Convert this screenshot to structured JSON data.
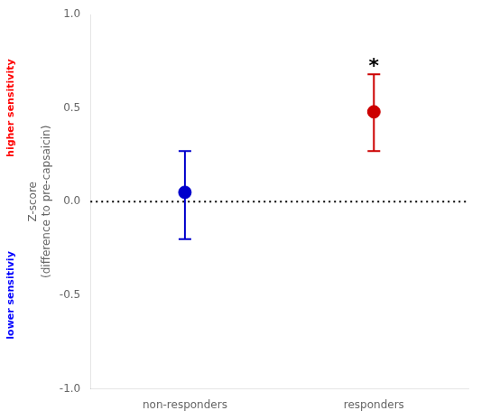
{
  "chart_data": {
    "type": "scatter",
    "categories": [
      "non-responders",
      "responders"
    ],
    "values": [
      0.05,
      0.48
    ],
    "err_low": [
      0.25,
      0.21
    ],
    "err_high": [
      0.22,
      0.2
    ],
    "colors": [
      "#0000CC",
      "#CC0000"
    ],
    "marker": "circle",
    "ylabel": [
      "Z-score",
      "(difference to pre-capsaicin)"
    ],
    "ylim": [
      -1.0,
      1.0
    ],
    "yticks": [
      {
        "value": -1.0,
        "label": "-1.0"
      },
      -0.5,
      {
        "value": 0.0,
        "label": "0.0"
      },
      0.5,
      {
        "value": 1.0,
        "label": "1.0"
      }
    ],
    "reference_y": 0.0,
    "annotations": [
      {
        "text": "*",
        "x": "responders",
        "y": 0.74
      }
    ],
    "side_labels": [
      {
        "text": "higher sensitivity",
        "color": "#FF0000"
      },
      {
        "text": "lower sensitiviy",
        "color": "#0000FF"
      }
    ],
    "grid": false,
    "legend": false
  }
}
